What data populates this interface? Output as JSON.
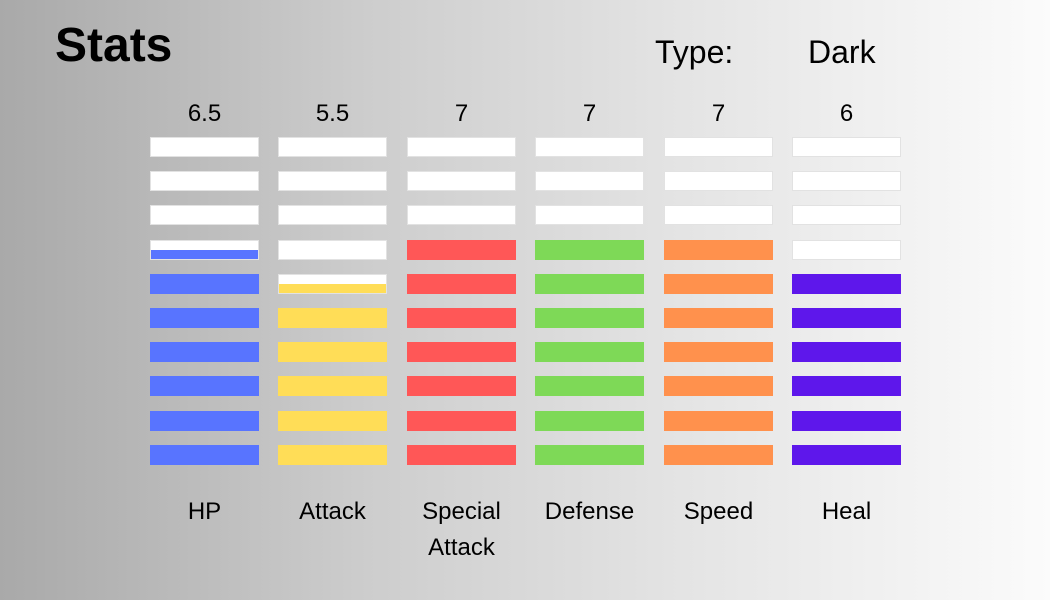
{
  "header": {
    "title": "Stats",
    "type_label": "Type:",
    "type_value": "Dark"
  },
  "max_segments": 10,
  "stats": [
    {
      "label": "HP",
      "value": 6.5,
      "value_text": "6.5",
      "color": "#5874ff"
    },
    {
      "label": "Attack",
      "value": 5.5,
      "value_text": "5.5",
      "color": "#ffdd57"
    },
    {
      "label": "Special Attack",
      "value": 7,
      "value_text": "7",
      "color": "#ff5757"
    },
    {
      "label": "Defense",
      "value": 7,
      "value_text": "7",
      "color": "#7ed957"
    },
    {
      "label": "Speed",
      "value": 7,
      "value_text": "7",
      "color": "#ff914d"
    },
    {
      "label": "Heal",
      "value": 6,
      "value_text": "6",
      "color": "#5e17eb"
    }
  ]
}
